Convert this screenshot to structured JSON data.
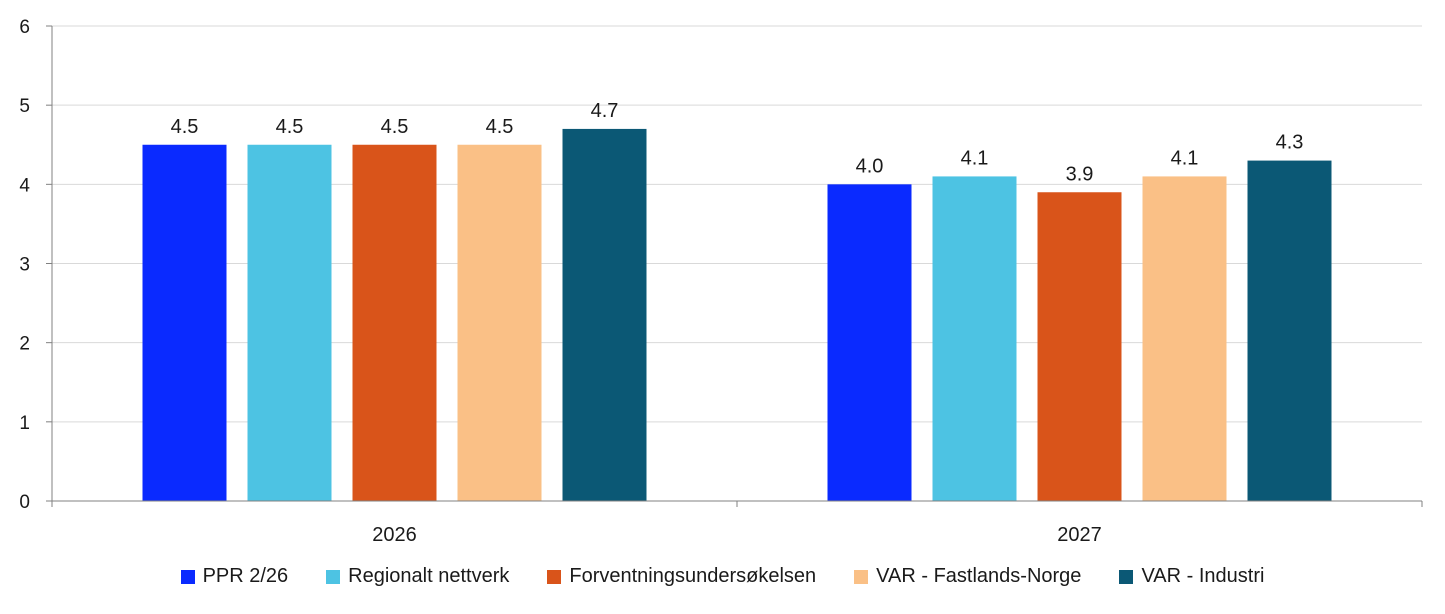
{
  "chart_data": {
    "type": "bar",
    "categories": [
      "2026",
      "2027"
    ],
    "series": [
      {
        "name": "PPR 2/26",
        "color": "#0A2AFF",
        "values": [
          4.5,
          4.0
        ]
      },
      {
        "name": "Regionalt nettverk",
        "color": "#4DC3E3",
        "values": [
          4.5,
          4.1
        ]
      },
      {
        "name": "Forventningsundersøkelsen",
        "color": "#D9541A",
        "values": [
          4.5,
          3.9
        ]
      },
      {
        "name": "VAR - Fastlands-Norge",
        "color": "#FAC086",
        "values": [
          4.5,
          4.1
        ]
      },
      {
        "name": "VAR - Industri",
        "color": "#0B5875",
        "values": [
          4.7,
          4.3
        ]
      }
    ],
    "data_labels": [
      [
        "4.5",
        "4.0"
      ],
      [
        "4.5",
        "4.1"
      ],
      [
        "4.5",
        "3.9"
      ],
      [
        "4.5",
        "4.1"
      ],
      [
        "4.7",
        "4.3"
      ]
    ],
    "y_ticks": [
      "0",
      "1",
      "2",
      "3",
      "4",
      "5",
      "6"
    ],
    "ylim": [
      0,
      6
    ],
    "grid": true,
    "legend_position": "bottom"
  }
}
